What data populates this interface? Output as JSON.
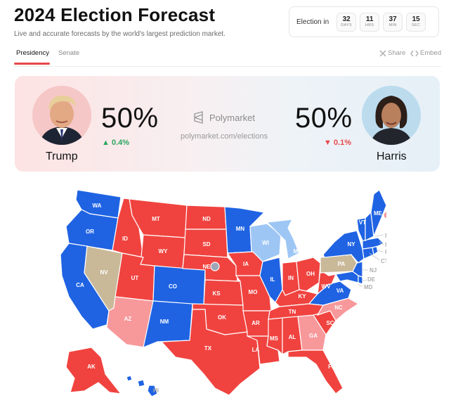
{
  "header": {
    "title": "2024 Election Forecast",
    "subtitle": "Live and accurate forecasts by the world's largest prediction market."
  },
  "countdown": {
    "label": "Election in",
    "units": [
      {
        "value": "32",
        "unit": "DAYS"
      },
      {
        "value": "11",
        "unit": "HRS"
      },
      {
        "value": "37",
        "unit": "MIN"
      },
      {
        "value": "15",
        "unit": "SEC"
      }
    ]
  },
  "tabs": [
    {
      "label": "Presidency",
      "active": true
    },
    {
      "label": "Senate",
      "active": false
    }
  ],
  "actions": {
    "share": "Share",
    "embed": "Embed"
  },
  "forecast": {
    "trump": {
      "name": "Trump",
      "pct": "50%",
      "delta": "0.4%",
      "direction": "up"
    },
    "harris": {
      "name": "Harris",
      "pct": "50%",
      "delta": "0.1%",
      "direction": "down"
    },
    "brand": "Polymarket",
    "url": "polymarket.com/elections"
  },
  "colors": {
    "solid_red": "#f0433f",
    "solid_blue": "#1f63e3",
    "lean_red": "#f7989a",
    "lean_blue": "#9ec6f5",
    "tossup": "#c9b999",
    "accent": "#e8474b",
    "positive": "#2aa55f"
  },
  "map": {
    "states_inside": [
      "WA",
      "OR",
      "CA",
      "NV",
      "ID",
      "MT",
      "WY",
      "UT",
      "AZ",
      "CO",
      "NM",
      "ND",
      "SD",
      "NE",
      "KS",
      "OK",
      "TX",
      "MN",
      "IA",
      "MO",
      "AR",
      "LA",
      "WI",
      "IL",
      "MI",
      "IN",
      "KY",
      "TN",
      "MS",
      "AL",
      "GA",
      "FL",
      "SC",
      "NC",
      "VA",
      "WV",
      "OH",
      "PA",
      "NY",
      "ME",
      "VT",
      "AK",
      "HI"
    ],
    "states_external": [
      "NH",
      "MA",
      "RI",
      "CT",
      "NJ",
      "DE",
      "MD"
    ],
    "ratings": {
      "solid_red": [
        "MT",
        "ID",
        "WY",
        "UT",
        "ND",
        "SD",
        "NE",
        "KS",
        "OK",
        "TX",
        "IA",
        "MO",
        "AR",
        "LA",
        "IN",
        "OH",
        "KY",
        "WV",
        "TN",
        "MS",
        "AL",
        "SC",
        "FL",
        "AK"
      ],
      "lean_red": [
        "AZ",
        "GA",
        "NC"
      ],
      "tossup": [
        "NV",
        "PA"
      ],
      "lean_blue": [
        "WI",
        "MI"
      ],
      "solid_blue": [
        "WA",
        "OR",
        "CA",
        "CO",
        "NM",
        "MN",
        "IL",
        "NY",
        "VA",
        "ME",
        "VT",
        "NH",
        "MA",
        "CT",
        "RI",
        "NJ",
        "DE",
        "MD",
        "HI"
      ]
    }
  }
}
